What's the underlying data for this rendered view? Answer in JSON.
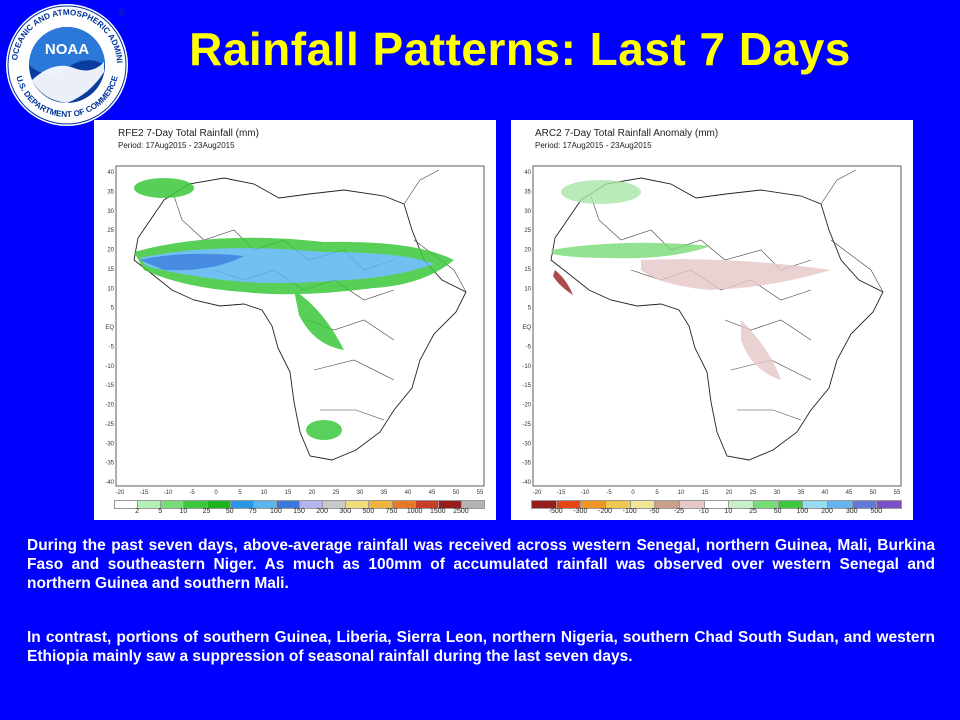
{
  "slide": {
    "title": "Rainfall Patterns: Last 7 Days",
    "logo": {
      "text": "NOAA",
      "ring_top": "NATIONAL OCEANIC AND ATMOSPHERIC ADMINISTRATION",
      "ring_bottom": "U.S. DEPARTMENT OF COMMERCE",
      "mark": "®"
    },
    "paragraphs": [
      "During the past seven days, above-average rainfall was received across western Senegal, northern Guinea, Mali, Burkina Faso and southeastern Niger.  As much as 100mm of accumulated rainfall was observed over western Senegal and northern Guinea and southern Mali.",
      "In contrast, portions of southern Guinea, Liberia, Sierra Leon, northern Nigeria, southern Chad South Sudan, and western Ethiopia mainly saw a suppression of seasonal rainfall during the last seven days."
    ]
  },
  "maps": {
    "lat_ticks": [
      "40",
      "35",
      "30",
      "25",
      "20",
      "15",
      "10",
      "5",
      "EQ",
      "-5",
      "-10",
      "-15",
      "-20",
      "-25",
      "-30",
      "-35",
      "-40"
    ],
    "lon_ticks": [
      "-20",
      "-15",
      "-10",
      "-5",
      "0",
      "5",
      "10",
      "15",
      "20",
      "25",
      "30",
      "35",
      "40",
      "45",
      "50",
      "55"
    ],
    "left": {
      "title": "RFE2 7-Day Total Rainfall (mm)",
      "period": "Period: 17Aug2015 - 23Aug2015",
      "legend_labels": [
        "2",
        "5",
        "10",
        "25",
        "50",
        "75",
        "100",
        "150",
        "200",
        "300",
        "500",
        "750",
        "1000",
        "1500",
        "2500"
      ],
      "legend_colors": [
        "#FFFFFF",
        "#B4F0B4",
        "#78DC78",
        "#3CC83C",
        "#1EB41E",
        "#2896E6",
        "#5AB4F0",
        "#3C78DC",
        "#B4B4F0",
        "#C8C8C8",
        "#F0DC78",
        "#F0B43C",
        "#E67828",
        "#C83C28",
        "#961E1E",
        "#B4B4B4"
      ]
    },
    "right": {
      "title": "ARC2 7-Day Total Rainfall Anomaly (mm)",
      "period": "Period: 17Aug2015 - 23Aug2015",
      "legend_labels": [
        "-500",
        "-300",
        "-200",
        "-100",
        "-50",
        "-25",
        "-10",
        "10",
        "25",
        "50",
        "100",
        "200",
        "300",
        "500"
      ],
      "legend_colors": [
        "#961E1E",
        "#E64614",
        "#F09628",
        "#F0C850",
        "#F0E696",
        "#C8A08C",
        "#E6C8C8",
        "#FFFFFF",
        "#C8F0C8",
        "#78DC78",
        "#3CC83C",
        "#96DCF0",
        "#64B4F0",
        "#6478DC",
        "#7850C8"
      ]
    }
  }
}
